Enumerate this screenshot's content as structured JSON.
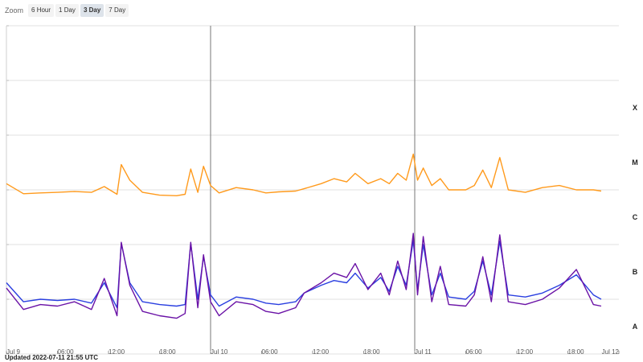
{
  "zoom": {
    "label": "Zoom",
    "buttons": [
      {
        "label": "6 Hour",
        "active": false
      },
      {
        "label": "1 Day",
        "active": false
      },
      {
        "label": "3 Day",
        "active": true
      },
      {
        "label": "7 Day",
        "active": false
      }
    ]
  },
  "updated_text": "Updated 2022-07-11 21:55 UTC",
  "colors": {
    "long_series": "#ff9a1c",
    "short_series": "#2a3fe0",
    "short_series_dark": "#6a12a6",
    "grid": "#e2e2e2",
    "day_line": "#777777"
  },
  "chart_data": {
    "type": "line",
    "y_scale": "log",
    "ylim": [
      1e-09,
      0.001
    ],
    "flare_classes": [
      {
        "label": "X",
        "value": 0.0001
      },
      {
        "label": "M",
        "value": 1e-05
      },
      {
        "label": "C",
        "value": 1e-06
      },
      {
        "label": "B",
        "value": 1e-07
      },
      {
        "label": "A",
        "value": 1e-08
      }
    ],
    "xlim": [
      "2022-07-09 00:00",
      "2022-07-12 00:00"
    ],
    "x_ticks": [
      "Jul 9",
      "06:00",
      "12:00",
      "18:00",
      "Jul 10",
      "06:00",
      "12:00",
      "18:00",
      "Jul 11",
      "06:00",
      "12:00",
      "18:00",
      "Jul 12"
    ],
    "day_lines": [
      "2022-07-10 00:00",
      "2022-07-11 00:00"
    ],
    "series": [
      {
        "color": "#ff9a1c",
        "points": [
          [
            "2022-07-09 00:00",
            1.3e-06
          ],
          [
            "2022-07-09 02:00",
            8.5e-07
          ],
          [
            "2022-07-09 04:00",
            8.8e-07
          ],
          [
            "2022-07-09 06:00",
            9e-07
          ],
          [
            "2022-07-09 08:00",
            9.3e-07
          ],
          [
            "2022-07-09 10:00",
            9e-07
          ],
          [
            "2022-07-09 11:30",
            1.15e-06
          ],
          [
            "2022-07-09 13:00",
            8.3e-07
          ],
          [
            "2022-07-09 13:30",
            2.9e-06
          ],
          [
            "2022-07-09 14:30",
            1.5e-06
          ],
          [
            "2022-07-09 16:00",
            9e-07
          ],
          [
            "2022-07-09 18:00",
            8e-07
          ],
          [
            "2022-07-09 20:00",
            7.8e-07
          ],
          [
            "2022-07-09 21:00",
            8.3e-07
          ],
          [
            "2022-07-09 21:40",
            2.4e-06
          ],
          [
            "2022-07-09 22:30",
            9e-07
          ],
          [
            "2022-07-09 23:10",
            2.7e-06
          ],
          [
            "2022-07-10 00:00",
            1.2e-06
          ],
          [
            "2022-07-10 01:00",
            8.8e-07
          ],
          [
            "2022-07-10 03:00",
            1.1e-06
          ],
          [
            "2022-07-10 05:00",
            1e-06
          ],
          [
            "2022-07-10 06:30",
            8.8e-07
          ],
          [
            "2022-07-10 08:00",
            9.2e-07
          ],
          [
            "2022-07-10 10:00",
            9.5e-07
          ],
          [
            "2022-07-10 11:00",
            1.05e-06
          ],
          [
            "2022-07-10 13:00",
            1.3e-06
          ],
          [
            "2022-07-10 14:30",
            1.6e-06
          ],
          [
            "2022-07-10 16:00",
            1.4e-06
          ],
          [
            "2022-07-10 17:00",
            2e-06
          ],
          [
            "2022-07-10 18:30",
            1.3e-06
          ],
          [
            "2022-07-10 20:00",
            1.6e-06
          ],
          [
            "2022-07-10 21:00",
            1.3e-06
          ],
          [
            "2022-07-10 22:00",
            2e-06
          ],
          [
            "2022-07-10 23:00",
            1.5e-06
          ],
          [
            "2022-07-10 23:50",
            4.5e-06
          ],
          [
            "2022-07-11 00:20",
            1.5e-06
          ],
          [
            "2022-07-11 01:00",
            2.5e-06
          ],
          [
            "2022-07-11 02:00",
            1.2e-06
          ],
          [
            "2022-07-11 03:00",
            1.6e-06
          ],
          [
            "2022-07-11 04:00",
            1e-06
          ],
          [
            "2022-07-11 06:00",
            1e-06
          ],
          [
            "2022-07-11 07:00",
            1.2e-06
          ],
          [
            "2022-07-11 08:00",
            2.3e-06
          ],
          [
            "2022-07-11 09:00",
            1.1e-06
          ],
          [
            "2022-07-11 10:00",
            3.9e-06
          ],
          [
            "2022-07-11 11:00",
            1e-06
          ],
          [
            "2022-07-11 13:00",
            9e-07
          ],
          [
            "2022-07-11 15:00",
            1.1e-06
          ],
          [
            "2022-07-11 17:00",
            1.2e-06
          ],
          [
            "2022-07-11 19:00",
            1e-06
          ],
          [
            "2022-07-11 21:00",
            1e-06
          ],
          [
            "2022-07-11 21:55",
            9.5e-07
          ]
        ]
      },
      {
        "color": "#2a3fe0",
        "points": [
          [
            "2022-07-09 00:00",
            2e-08
          ],
          [
            "2022-07-09 02:00",
            9e-09
          ],
          [
            "2022-07-09 04:00",
            1e-08
          ],
          [
            "2022-07-09 06:00",
            9.5e-09
          ],
          [
            "2022-07-09 08:00",
            1e-08
          ],
          [
            "2022-07-09 10:00",
            8.5e-09
          ],
          [
            "2022-07-09 11:30",
            2e-08
          ],
          [
            "2022-07-09 13:00",
            7e-09
          ],
          [
            "2022-07-09 13:30",
            1.05e-07
          ],
          [
            "2022-07-09 14:30",
            2e-08
          ],
          [
            "2022-07-09 16:00",
            9e-09
          ],
          [
            "2022-07-09 18:00",
            8e-09
          ],
          [
            "2022-07-09 20:00",
            7.5e-09
          ],
          [
            "2022-07-09 21:00",
            8e-09
          ],
          [
            "2022-07-09 21:40",
            1.05e-07
          ],
          [
            "2022-07-09 22:30",
            1e-08
          ],
          [
            "2022-07-09 23:10",
            6e-08
          ],
          [
            "2022-07-10 00:00",
            1.2e-08
          ],
          [
            "2022-07-10 01:00",
            7.5e-09
          ],
          [
            "2022-07-10 03:00",
            1.1e-08
          ],
          [
            "2022-07-10 05:00",
            1e-08
          ],
          [
            "2022-07-10 06:30",
            8.5e-09
          ],
          [
            "2022-07-10 08:00",
            8e-09
          ],
          [
            "2022-07-10 10:00",
            9e-09
          ],
          [
            "2022-07-10 11:00",
            1.3e-08
          ],
          [
            "2022-07-10 13:00",
            1.8e-08
          ],
          [
            "2022-07-10 14:30",
            2.2e-08
          ],
          [
            "2022-07-10 16:00",
            2e-08
          ],
          [
            "2022-07-10 17:00",
            3e-08
          ],
          [
            "2022-07-10 18:30",
            1.6e-08
          ],
          [
            "2022-07-10 20:00",
            2.5e-08
          ],
          [
            "2022-07-10 21:00",
            1.4e-08
          ],
          [
            "2022-07-10 22:00",
            4e-08
          ],
          [
            "2022-07-10 23:00",
            1.8e-08
          ],
          [
            "2022-07-10 23:50",
            1.2e-07
          ],
          [
            "2022-07-11 00:20",
            1.5e-08
          ],
          [
            "2022-07-11 01:00",
            1e-07
          ],
          [
            "2022-07-11 02:00",
            1.2e-08
          ],
          [
            "2022-07-11 03:00",
            3e-08
          ],
          [
            "2022-07-11 04:00",
            1.1e-08
          ],
          [
            "2022-07-11 06:00",
            1e-08
          ],
          [
            "2022-07-11 07:00",
            1.4e-08
          ],
          [
            "2022-07-11 08:00",
            5e-08
          ],
          [
            "2022-07-11 09:00",
            1.2e-08
          ],
          [
            "2022-07-11 10:00",
            1.15e-07
          ],
          [
            "2022-07-11 11:00",
            1.2e-08
          ],
          [
            "2022-07-11 13:00",
            1.1e-08
          ],
          [
            "2022-07-11 15:00",
            1.3e-08
          ],
          [
            "2022-07-11 17:00",
            1.8e-08
          ],
          [
            "2022-07-11 19:00",
            2.8e-08
          ],
          [
            "2022-07-11 21:00",
            1.2e-08
          ],
          [
            "2022-07-11 21:55",
            1e-08
          ]
        ]
      },
      {
        "color": "#6a12a6",
        "points": [
          [
            "2022-07-09 00:00",
            1.6e-08
          ],
          [
            "2022-07-09 02:00",
            6.5e-09
          ],
          [
            "2022-07-09 04:00",
            8e-09
          ],
          [
            "2022-07-09 06:00",
            7.5e-09
          ],
          [
            "2022-07-09 08:00",
            9e-09
          ],
          [
            "2022-07-09 10:00",
            6.5e-09
          ],
          [
            "2022-07-09 11:30",
            2.4e-08
          ],
          [
            "2022-07-09 13:00",
            5e-09
          ],
          [
            "2022-07-09 13:30",
            1.1e-07
          ],
          [
            "2022-07-09 14:30",
            1.8e-08
          ],
          [
            "2022-07-09 16:00",
            6e-09
          ],
          [
            "2022-07-09 18:00",
            5e-09
          ],
          [
            "2022-07-09 20:00",
            4.5e-09
          ],
          [
            "2022-07-09 21:00",
            5.5e-09
          ],
          [
            "2022-07-09 21:40",
            1.1e-07
          ],
          [
            "2022-07-09 22:30",
            7e-09
          ],
          [
            "2022-07-09 23:10",
            6.5e-08
          ],
          [
            "2022-07-10 00:00",
            9e-09
          ],
          [
            "2022-07-10 01:00",
            5e-09
          ],
          [
            "2022-07-10 03:00",
            9e-09
          ],
          [
            "2022-07-10 05:00",
            8e-09
          ],
          [
            "2022-07-10 06:30",
            6e-09
          ],
          [
            "2022-07-10 08:00",
            5.5e-09
          ],
          [
            "2022-07-10 10:00",
            7e-09
          ],
          [
            "2022-07-10 11:00",
            1.3e-08
          ],
          [
            "2022-07-10 13:00",
            2e-08
          ],
          [
            "2022-07-10 14:30",
            3e-08
          ],
          [
            "2022-07-10 16:00",
            2.5e-08
          ],
          [
            "2022-07-10 17:00",
            4.5e-08
          ],
          [
            "2022-07-10 18:30",
            1.5e-08
          ],
          [
            "2022-07-10 20:00",
            3e-08
          ],
          [
            "2022-07-10 21:00",
            1.2e-08
          ],
          [
            "2022-07-10 22:00",
            5e-08
          ],
          [
            "2022-07-10 23:00",
            1.5e-08
          ],
          [
            "2022-07-10 23:50",
            1.6e-07
          ],
          [
            "2022-07-11 00:20",
            1.2e-08
          ],
          [
            "2022-07-11 01:00",
            1.4e-07
          ],
          [
            "2022-07-11 02:00",
            9e-09
          ],
          [
            "2022-07-11 03:00",
            4e-08
          ],
          [
            "2022-07-11 04:00",
            8e-09
          ],
          [
            "2022-07-11 06:00",
            7.5e-09
          ],
          [
            "2022-07-11 07:00",
            1.2e-08
          ],
          [
            "2022-07-11 08:00",
            6e-08
          ],
          [
            "2022-07-11 09:00",
            9e-09
          ],
          [
            "2022-07-11 10:00",
            1.5e-07
          ],
          [
            "2022-07-11 11:00",
            9e-09
          ],
          [
            "2022-07-11 13:00",
            8e-09
          ],
          [
            "2022-07-11 15:00",
            1e-08
          ],
          [
            "2022-07-11 17:00",
            1.6e-08
          ],
          [
            "2022-07-11 19:00",
            3.5e-08
          ],
          [
            "2022-07-11 21:00",
            8e-09
          ],
          [
            "2022-07-11 21:55",
            7.5e-09
          ]
        ]
      }
    ]
  }
}
